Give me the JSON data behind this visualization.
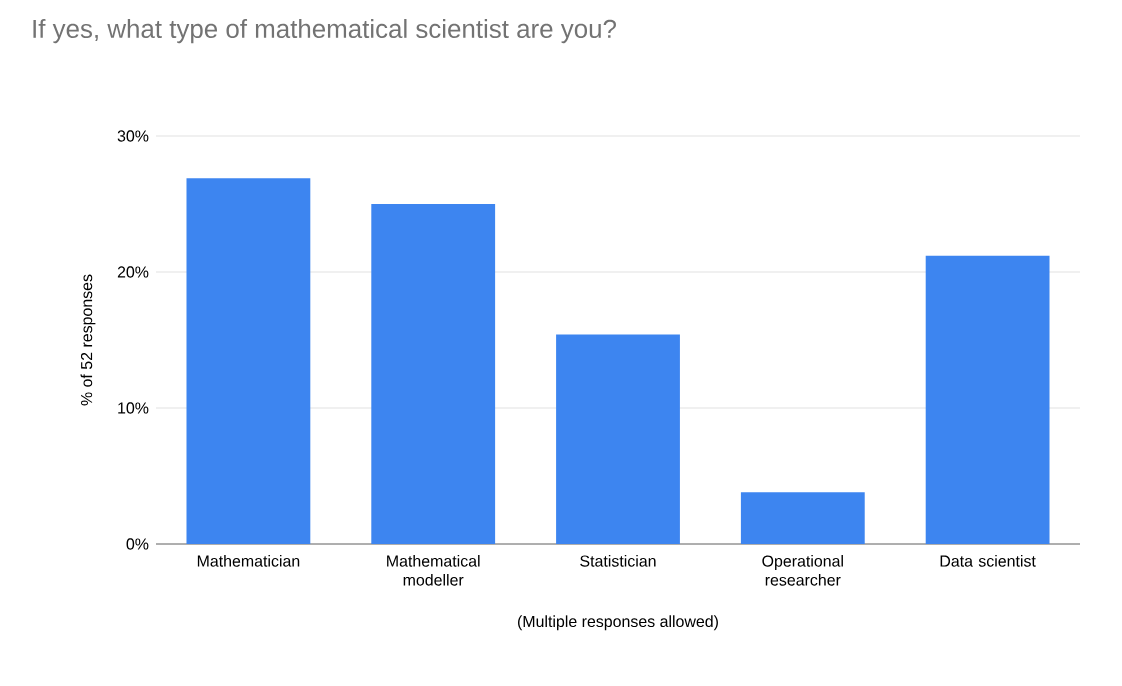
{
  "chart_data": {
    "type": "bar",
    "title": "If yes, what type of mathematical scientist are you?",
    "categories": [
      "Mathematician",
      "Mathematical modeller",
      "Statistician",
      "Operational researcher",
      "Data scientist"
    ],
    "values": [
      26.9,
      25.0,
      15.4,
      3.8,
      21.2
    ],
    "color": "#3d85f0",
    "xlabel": "(Multiple responses allowed)",
    "ylabel": "% of 52 responses",
    "ylim": [
      0,
      30
    ],
    "yticks": [
      {
        "value": 0,
        "label": "0%"
      },
      {
        "value": 10,
        "label": "10%"
      },
      {
        "value": 20,
        "label": "20%"
      },
      {
        "value": 30,
        "label": "30%"
      }
    ],
    "grid": "y"
  }
}
